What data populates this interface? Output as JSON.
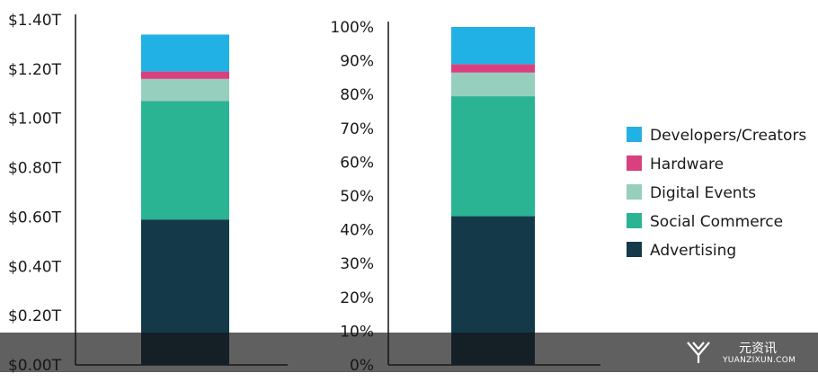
{
  "chart_data": [
    {
      "type": "bar",
      "stacked": true,
      "categories": [
        ""
      ],
      "ylim": [
        0,
        1.4
      ],
      "yticks": [
        0,
        0.2,
        0.4,
        0.6,
        0.8,
        1.0,
        1.2,
        1.4
      ],
      "ytick_labels": [
        "$0.00T",
        "$0.20T",
        "$0.40T",
        "$0.60T",
        "$0.80T",
        "$1.00T",
        "$1.20T",
        "$1.40T"
      ],
      "series": [
        {
          "name": "Advertising",
          "values": [
            0.59
          ],
          "color": "#143a4a"
        },
        {
          "name": "Social Commerce",
          "values": [
            0.48
          ],
          "color": "#2ab494"
        },
        {
          "name": "Digital Events",
          "values": [
            0.09
          ],
          "color": "#96cfbd"
        },
        {
          "name": "Hardware",
          "values": [
            0.03
          ],
          "color": "#d9407f"
        },
        {
          "name": "Developers/Creators",
          "values": [
            0.15
          ],
          "color": "#21b1e5"
        }
      ]
    },
    {
      "type": "bar",
      "stacked": true,
      "categories": [
        ""
      ],
      "ylim": [
        0,
        100
      ],
      "yticks": [
        0,
        10,
        20,
        30,
        40,
        50,
        60,
        70,
        80,
        90,
        100
      ],
      "ytick_labels": [
        "0%",
        "10%",
        "20%",
        "30%",
        "40%",
        "50%",
        "60%",
        "70%",
        "80%",
        "90%",
        "100%"
      ],
      "series": [
        {
          "name": "Advertising",
          "values": [
            44
          ],
          "color": "#143a4a"
        },
        {
          "name": "Social Commerce",
          "values": [
            35.5
          ],
          "color": "#2ab494"
        },
        {
          "name": "Digital Events",
          "values": [
            7
          ],
          "color": "#96cfbd"
        },
        {
          "name": "Hardware",
          "values": [
            2.5
          ],
          "color": "#d9407f"
        },
        {
          "name": "Developers/Creators",
          "values": [
            11
          ],
          "color": "#21b1e5"
        }
      ]
    }
  ],
  "legend": {
    "placement": "right",
    "items": [
      {
        "label": "Developers/Creators",
        "color": "#21b1e5"
      },
      {
        "label": "Hardware",
        "color": "#d9407f"
      },
      {
        "label": "Digital Events",
        "color": "#96cfbd"
      },
      {
        "label": "Social Commerce",
        "color": "#2ab494"
      },
      {
        "label": "Advertising",
        "color": "#143a4a"
      }
    ]
  },
  "watermark": {
    "name_cn": "元资讯",
    "url": "YUANZIXUN.COM"
  }
}
